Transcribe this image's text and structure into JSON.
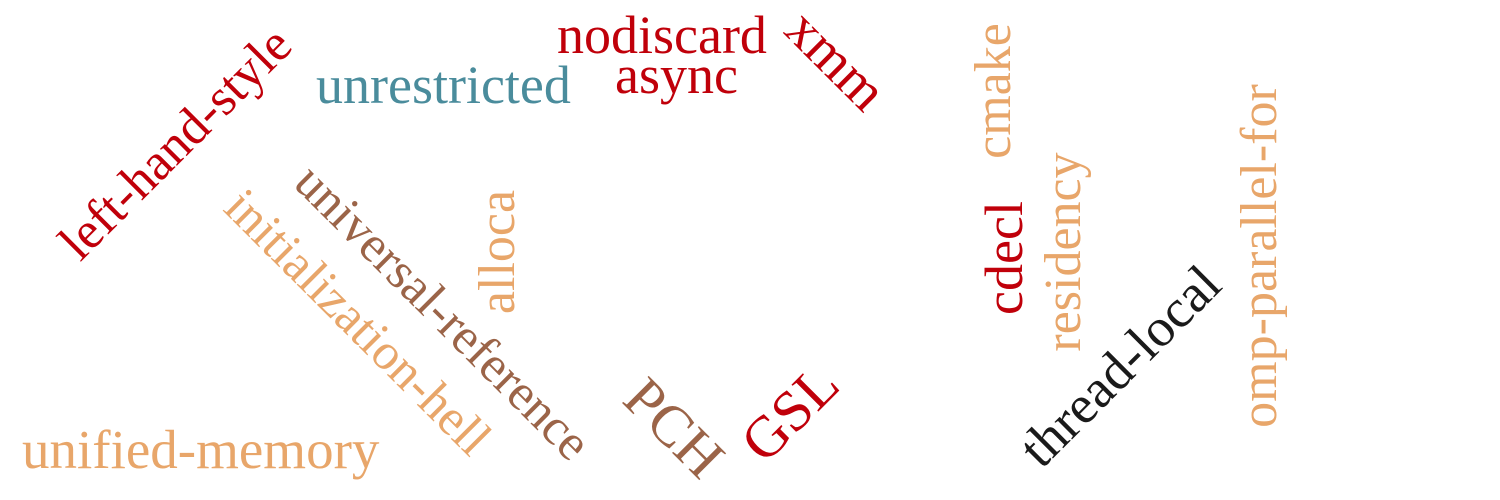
{
  "cloud": {
    "background": "#ffffff",
    "palette": {
      "red": "#c0000a",
      "teal": "#4a8c9c",
      "brown": "#9b6448",
      "tan": "#e8a66a",
      "black": "#1a1a1a"
    },
    "words": {
      "nodiscard": "nodiscard",
      "xmm": "xmm",
      "async": "async",
      "unrestricted": "unrestricted",
      "left_hand_style": "left-hand-style",
      "universal_reference": "universal-reference",
      "initialization_hell": "initialization-hell",
      "alloca": "alloca",
      "unified_memory": "unified-memory",
      "pch": "PCH",
      "gsl": "GSL",
      "cmake": "cmake",
      "cdecl": "cdecl",
      "residency": "residency",
      "thread_local": "thread-local",
      "omp_parallel_for": "omp-parallel-for"
    }
  }
}
